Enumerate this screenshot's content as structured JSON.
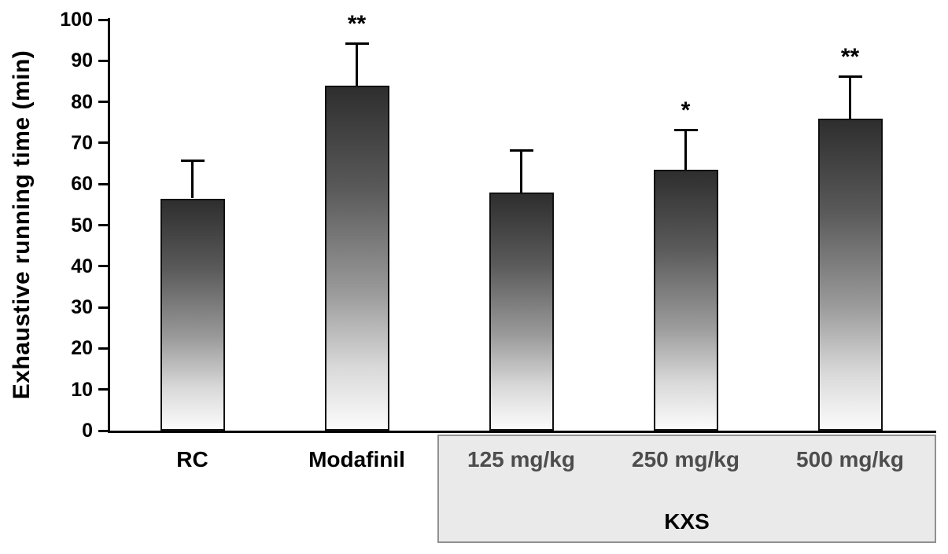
{
  "chart_data": {
    "type": "bar",
    "title": "",
    "ylabel": "Exhaustive running time (min)",
    "xlabel": "",
    "ylim": [
      0,
      100
    ],
    "yticks": [
      0,
      10,
      20,
      30,
      40,
      50,
      60,
      70,
      80,
      90,
      100
    ],
    "categories": [
      "RC",
      "Modafinil",
      "125 mg/kg",
      "250 mg/kg",
      "500 mg/kg"
    ],
    "values": [
      56.5,
      84,
      58,
      63.5,
      76
    ],
    "errors": [
      9.5,
      10.5,
      10.5,
      10,
      10.5
    ],
    "annotations": [
      "",
      "**",
      "",
      "*",
      "**"
    ],
    "group": {
      "label": "KXS",
      "members": [
        "125 mg/kg",
        "250 mg/kg",
        "500 mg/kg"
      ],
      "start_index": 2,
      "end_index": 4
    },
    "legend": "none",
    "grid": false,
    "bar_fill": "gradient-dark-top-to-light-bottom",
    "colors": {
      "bar_top": "#2e2e2e",
      "bar_bottom": "#fbfbfb",
      "axis": "#000000",
      "group_box_fill": "#eaeaea",
      "group_box_border": "#909090",
      "dose_label_color": "#4d4d4d"
    }
  }
}
